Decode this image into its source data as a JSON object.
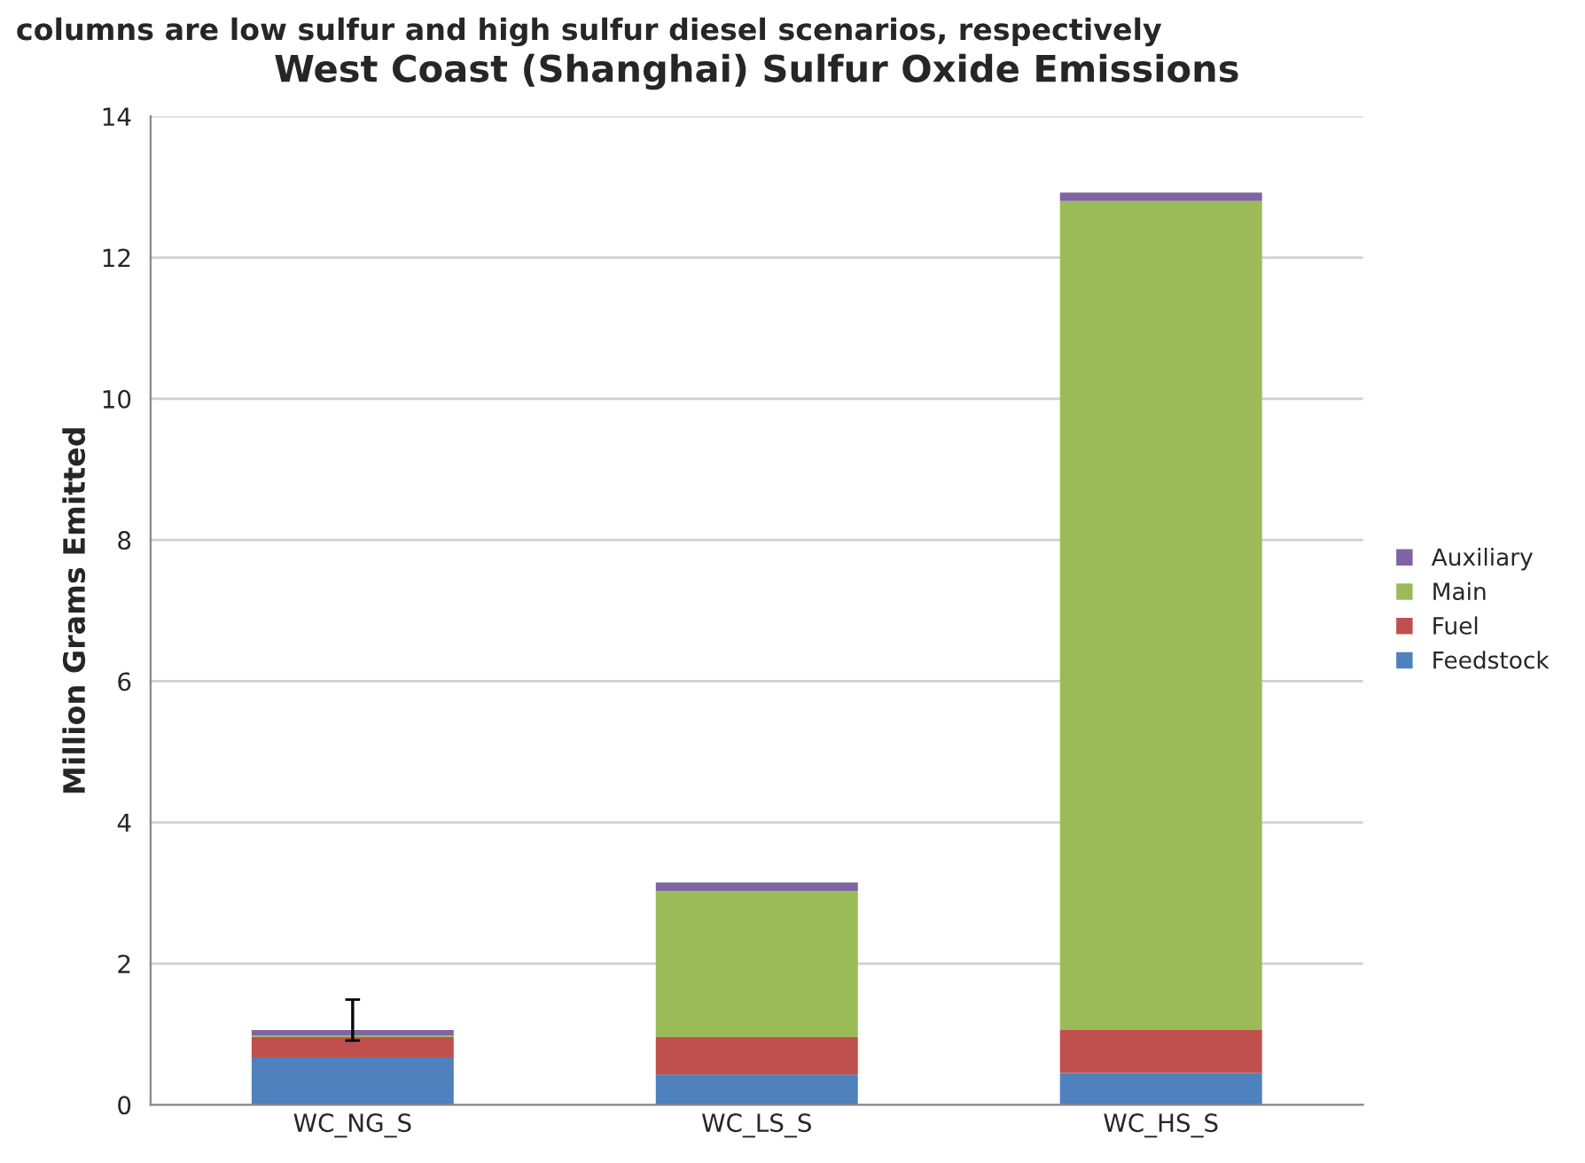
{
  "chart_data": {
    "type": "bar",
    "stacked": true,
    "title": "West Coast (Shanghai) Sulfur Oxide Emissions",
    "ylabel": "Million Grams Emitted",
    "annotations": [
      "columns are low sulfur and high sulfur diesel scenarios, respectively"
    ],
    "categories": [
      "WC_NG_S",
      "WC_LS_S",
      "WC_HS_S"
    ],
    "series": [
      {
        "name": "Feedstock",
        "color": "#4f81bd",
        "values": [
          0.67,
          0.43,
          0.45
        ]
      },
      {
        "name": "Fuel",
        "color": "#c0504d",
        "values": [
          0.29,
          0.53,
          0.61
        ]
      },
      {
        "name": "Main",
        "color": "#9bbb59",
        "values": [
          0.02,
          2.07,
          11.74
        ],
        "errors": [
          [
            0.91,
            1.49
          ],
          null,
          null
        ]
      },
      {
        "name": "Auxiliary",
        "color": "#8064a2",
        "values": [
          0.08,
          0.12,
          0.12
        ]
      }
    ],
    "ylim": [
      0,
      14
    ],
    "yticks": [
      0,
      2,
      4,
      6,
      8,
      10,
      12,
      14
    ],
    "grid": "y",
    "legend": "right"
  }
}
